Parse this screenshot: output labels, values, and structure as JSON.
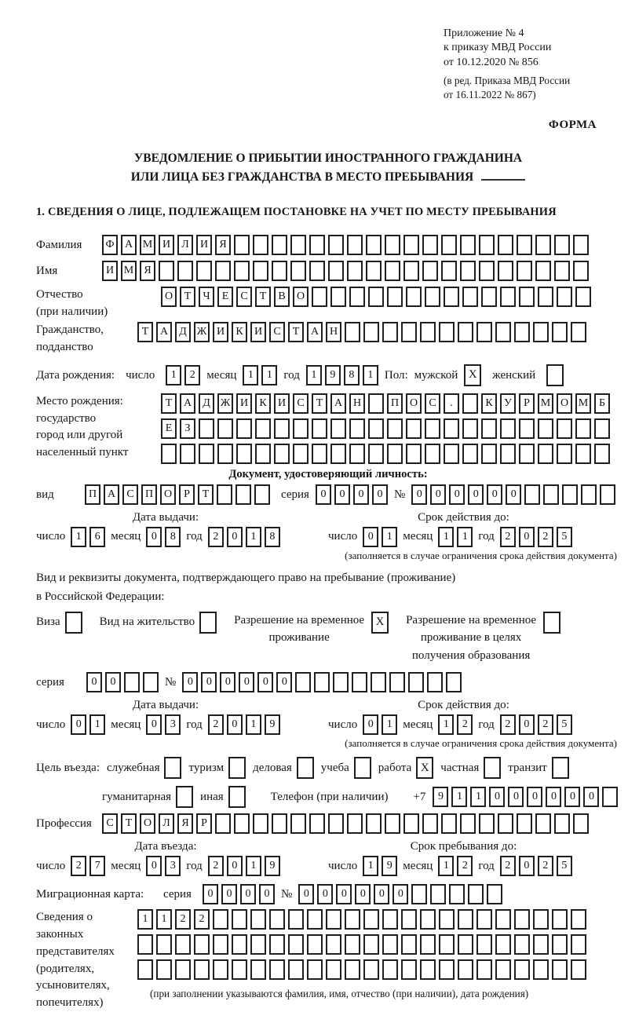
{
  "header": {
    "appendix_lines": [
      "Приложение № 4",
      "к приказу МВД России",
      "от 10.12.2020 № 856"
    ],
    "edition_lines": [
      "(в ред. Приказа МВД России",
      "от 16.11.2022 № 867)"
    ],
    "form_label": "ФОРМА"
  },
  "title": {
    "line1": "УВЕДОМЛЕНИЕ О ПРИБЫТИИ ИНОСТРАННОГО ГРАЖДАНИНА",
    "line2": "ИЛИ ЛИЦА БЕЗ ГРАЖДАНСТВА В МЕСТО ПРЕБЫВАНИЯ"
  },
  "section1": {
    "heading": "1. СВЕДЕНИЯ О ЛИЦЕ, ПОДЛЕЖАЩЕМ ПОСТАНОВКЕ НА УЧЕТ ПО МЕСТУ ПРЕБЫВАНИЯ"
  },
  "surname": {
    "label": "Фамилия",
    "boxes": {
      "text": "ФАМИЛИЯ",
      "count": 26
    }
  },
  "first_name": {
    "label": "Имя",
    "boxes": {
      "text": "ИМЯ",
      "count": 26
    }
  },
  "patronymic": {
    "label_lines": [
      "Отчество",
      "(при наличии)"
    ],
    "boxes": {
      "text": "ОТЧЕСТВО",
      "count": 23
    }
  },
  "citizenship": {
    "label_lines": [
      "Гражданство,",
      "подданство"
    ],
    "boxes": {
      "text": "ТАДЖИКИСТАН",
      "count": 24
    }
  },
  "birth_date": {
    "label": "Дата рождения:",
    "day_label": "число",
    "day": {
      "text": "12",
      "count": 2
    },
    "month_label": "месяц",
    "month": {
      "text": "11",
      "count": 2
    },
    "year_label": "год",
    "year": {
      "text": "1981",
      "count": 4
    }
  },
  "sex": {
    "label": "Пол:",
    "male_label": "мужской",
    "male_mark": "X",
    "female_label": "женский",
    "female_mark": ""
  },
  "birth_place": {
    "label_lines": [
      "Место рождения:",
      "государство",
      "город или другой",
      "населенный пункт"
    ],
    "row1": {
      "text": "ТАДЖИКИСТАН ПОС. КУРМОМБ",
      "count": 24
    },
    "row2": {
      "text": "ЕЗ",
      "count": 24
    },
    "row3": {
      "text": "",
      "count": 24
    }
  },
  "identity_doc": {
    "heading": "Документ, удостоверяющий личность:",
    "type_label": "вид",
    "type_boxes": {
      "text": "ПАСПОРТ",
      "count": 10
    },
    "series_label": "серия",
    "series_boxes": {
      "text": "0000",
      "count": 4
    },
    "number_label": "№",
    "number_boxes": {
      "text": "000000",
      "count": 11
    },
    "issue_header": "Дата выдачи:",
    "issue": {
      "day_label": "число",
      "day": {
        "text": "16",
        "count": 2
      },
      "month_label": "месяц",
      "month": {
        "text": "08",
        "count": 2
      },
      "year_label": "год",
      "year": {
        "text": "2018",
        "count": 4
      }
    },
    "valid_header": "Срок действия до:",
    "valid": {
      "day_label": "число",
      "day": {
        "text": "01",
        "count": 2
      },
      "month_label": "месяц",
      "month": {
        "text": "11",
        "count": 2
      },
      "year_label": "год",
      "year": {
        "text": "2025",
        "count": 4
      }
    },
    "note": "(заполняется в случае ограничения срока действия документа)"
  },
  "residence_doc": {
    "line1": "Вид и реквизиты документа, подтверждающего право на пребывание (проживание)",
    "line2": "в Российской Федерации:",
    "visa": {
      "label": "Виза",
      "mark": ""
    },
    "residence_permit": {
      "label": "Вид на жительство",
      "mark": ""
    },
    "temp_permit": {
      "label_lines": [
        "Разрешение на временное",
        "проживание"
      ],
      "mark": "X"
    },
    "temp_permit_edu": {
      "label_lines": [
        "Разрешение на временное",
        "проживание в целях",
        "получения образования"
      ],
      "mark": ""
    },
    "series_label": "серия",
    "series_boxes": {
      "text": "00",
      "count": 4
    },
    "number_label": "№",
    "number_boxes": {
      "text": "000000",
      "count": 15
    },
    "issue_header": "Дата выдачи:",
    "issue": {
      "day_label": "число",
      "day": {
        "text": "01",
        "count": 2
      },
      "month_label": "месяц",
      "month": {
        "text": "03",
        "count": 2
      },
      "year_label": "год",
      "year": {
        "text": "2019",
        "count": 4
      }
    },
    "valid_header": "Срок действия до:",
    "valid": {
      "day_label": "число",
      "day": {
        "text": "01",
        "count": 2
      },
      "month_label": "месяц",
      "month": {
        "text": "12",
        "count": 2
      },
      "year_label": "год",
      "year": {
        "text": "2025",
        "count": 4
      }
    },
    "note": "(заполняется в случае ограничения срока действия документа)"
  },
  "purpose": {
    "label": "Цель въезда:",
    "o1": {
      "label": "служебная",
      "mark": ""
    },
    "o2": {
      "label": "туризм",
      "mark": ""
    },
    "o3": {
      "label": "деловая",
      "mark": ""
    },
    "o4": {
      "label": "учеба",
      "mark": ""
    },
    "o5": {
      "label": "работа",
      "mark": "X"
    },
    "o6": {
      "label": "частная",
      "mark": ""
    },
    "o7": {
      "label": "транзит",
      "mark": ""
    },
    "o8": {
      "label": "гуманитарная",
      "mark": ""
    },
    "o9": {
      "label": "иная",
      "mark": ""
    }
  },
  "phone": {
    "label": "Телефон (при наличии)",
    "prefix": "+7",
    "boxes": {
      "text": "911000000",
      "count": 10
    }
  },
  "profession": {
    "label": "Профессия",
    "boxes": {
      "text": "СТОЛЯР",
      "count": 26
    }
  },
  "entry": {
    "entry_header": "Дата въезда:",
    "entry_date": {
      "day_label": "число",
      "day": {
        "text": "27",
        "count": 2
      },
      "month_label": "месяц",
      "month": {
        "text": "03",
        "count": 2
      },
      "year_label": "год",
      "year": {
        "text": "2019",
        "count": 4
      }
    },
    "stay_header": "Срок пребывания до:",
    "stay_date": {
      "day_label": "число",
      "day": {
        "text": "19",
        "count": 2
      },
      "month_label": "месяц",
      "month": {
        "text": "12",
        "count": 2
      },
      "year_label": "год",
      "year": {
        "text": "2025",
        "count": 4
      }
    }
  },
  "migration_card": {
    "label": "Миграционная карта:",
    "series_label": "серия",
    "series_boxes": {
      "text": "0000",
      "count": 4
    },
    "number_label": "№",
    "number_boxes": {
      "text": "000000",
      "count": 11
    }
  },
  "representatives": {
    "label_lines": [
      "Сведения о",
      "законных",
      "представителях",
      "(родителях,",
      "усыновителях,",
      "попечителях)"
    ],
    "row1": {
      "text": "1122",
      "count": 24
    },
    "row2": {
      "text": "",
      "count": 24
    },
    "row3": {
      "text": "",
      "count": 24
    },
    "note": "(при заполнении указываются фамилия, имя, отчество (при наличии), дата рождения)"
  }
}
